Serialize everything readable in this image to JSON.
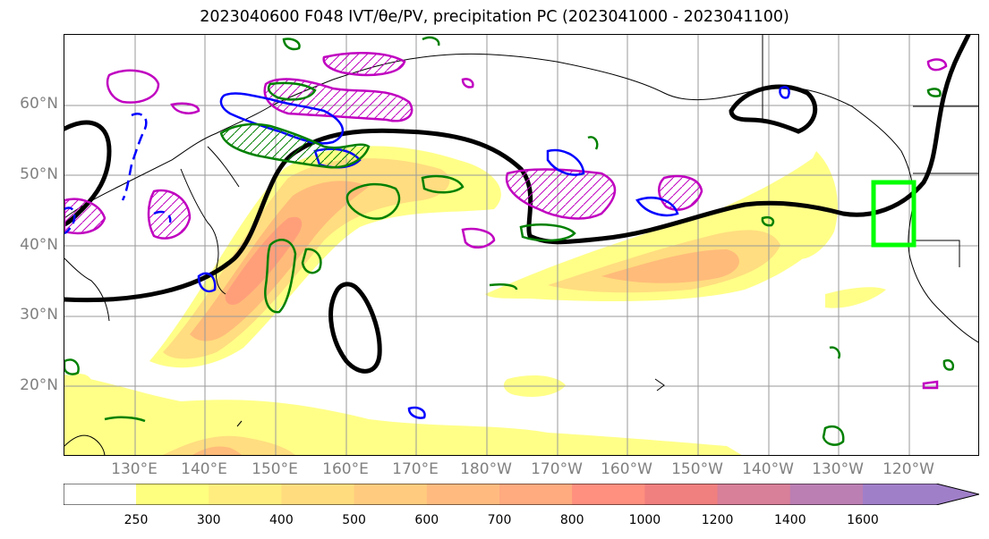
{
  "title": "2023040600 F048 IVT/θe/PV, precipitation PC (2023041000 - 2023041100)",
  "map": {
    "projection": "PlateCarree",
    "extent": {
      "lon_min": 120,
      "lon_max": 250,
      "lat_min": 10,
      "lat_max": 70
    },
    "lat_labels": [
      "60°N",
      "50°N",
      "40°N",
      "30°N",
      "20°N"
    ],
    "lon_labels": [
      "130°E",
      "140°E",
      "150°E",
      "160°E",
      "170°E",
      "180°W",
      "170°W",
      "160°W",
      "150°W",
      "140°W",
      "130°W",
      "120°W"
    ],
    "gridlines": true,
    "highlight_box": {
      "color": "#00ff00",
      "lon": [
        235,
        241
      ],
      "lat": [
        40,
        49
      ]
    },
    "contour_colors": {
      "theta_e": "#000000",
      "pv_green": "#008000",
      "pv_blue": "#0000ff",
      "pv_magenta": "#c000c0"
    }
  },
  "colorbar": {
    "levels": [
      "250",
      "300",
      "400",
      "500",
      "600",
      "700",
      "800",
      "1000",
      "1200",
      "1400",
      "1600"
    ],
    "colors": [
      "#ffff7f",
      "#ffee7f",
      "#ffdd7f",
      "#ffcc7f",
      "#ffbb7f",
      "#ffaa7f",
      "#ff8f7f",
      "#f07f7f",
      "#d87f99",
      "#bb7fb3",
      "#a07fc9"
    ]
  }
}
